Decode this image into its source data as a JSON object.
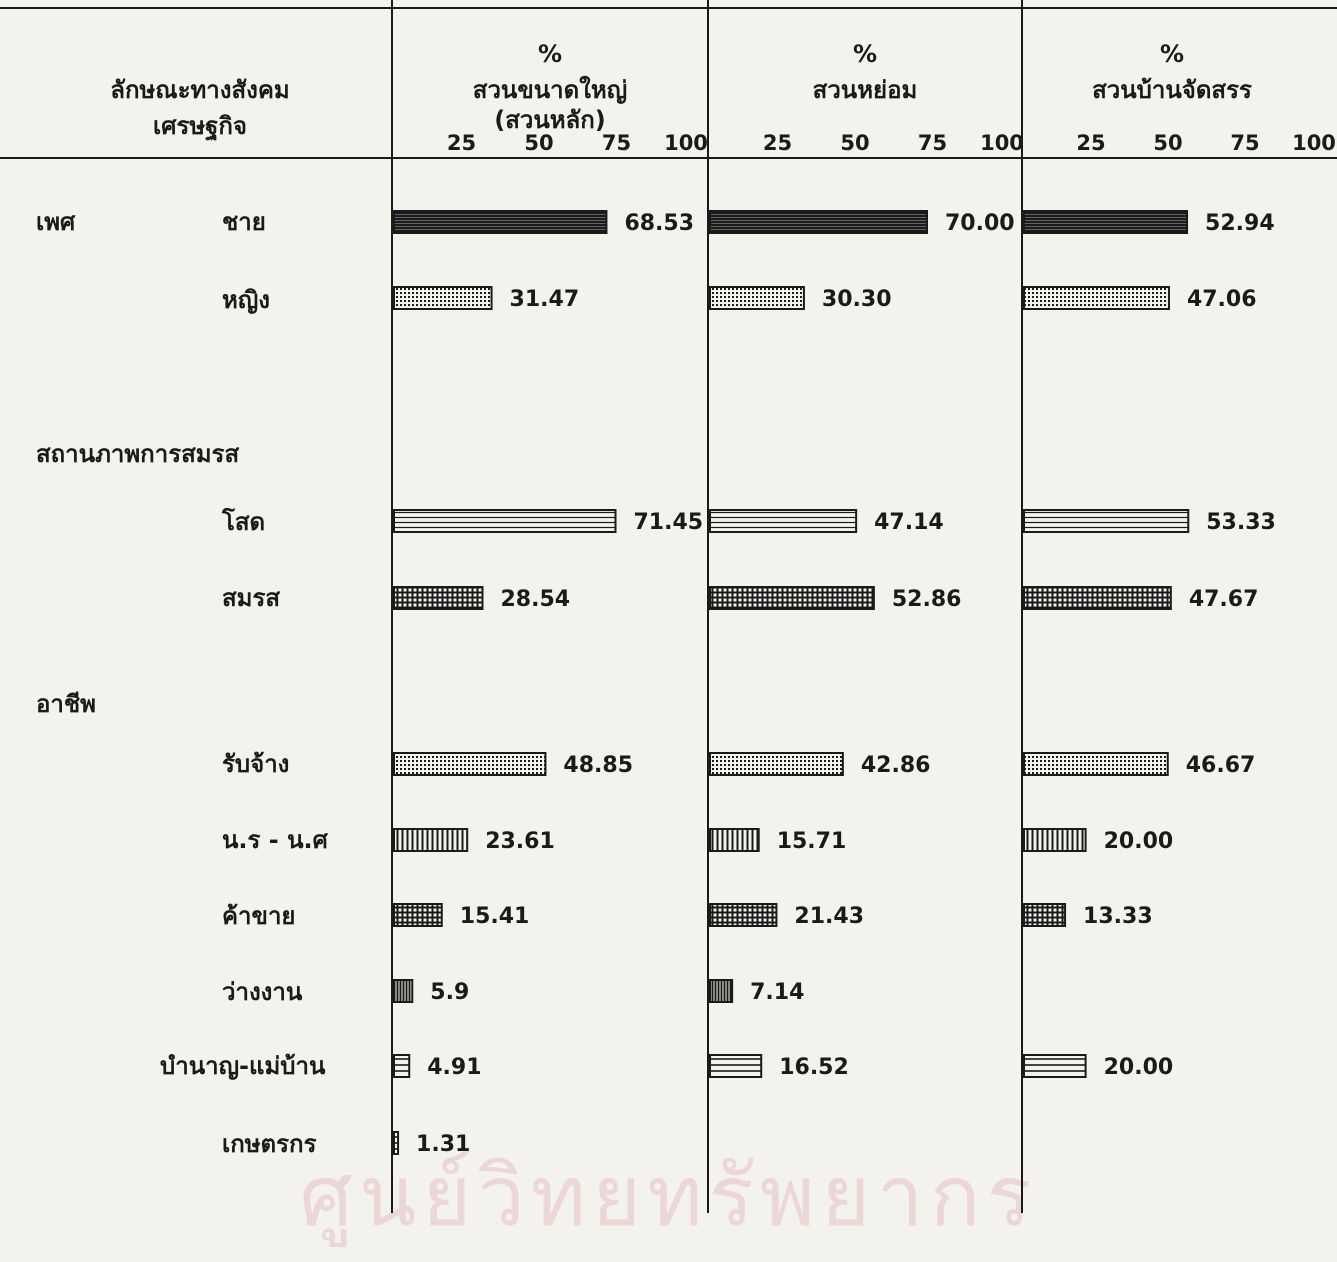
{
  "chart_data": {
    "type": "bar",
    "row_header": [
      "ลักษณะทางสังคม",
      "เศรษฐกิจ"
    ],
    "panels": [
      {
        "percent_sign": "%",
        "title": "สวนขนาดใหญ่",
        "subtitle": "(สวนหลัก)"
      },
      {
        "percent_sign": "%",
        "title": "สวนหย่อม",
        "subtitle": ""
      },
      {
        "percent_sign": "%",
        "title": "สวนบ้านจัดสรร",
        "subtitle": ""
      }
    ],
    "xlim": [
      0,
      100
    ],
    "ticks": [
      "25",
      "50",
      "75",
      "100"
    ],
    "groups": [
      {
        "label": "เพศ",
        "rows": [
          0,
          1
        ]
      },
      {
        "label": "สถานภาพการสมรส",
        "rows": [
          2,
          3
        ]
      },
      {
        "label": "อาชีพ",
        "rows": [
          4,
          5,
          6,
          7,
          8,
          9
        ]
      }
    ],
    "rows": [
      {
        "label": "ชาย",
        "pattern": "solid-dark",
        "values": [
          68.53,
          70.0,
          52.94
        ],
        "labels": [
          "68.53",
          "70.00",
          "52.94"
        ]
      },
      {
        "label": "หญิง",
        "pattern": "dots",
        "values": [
          31.47,
          30.3,
          47.06
        ],
        "labels": [
          "31.47",
          "30.30",
          "47.06"
        ]
      },
      {
        "label": "โสด",
        "pattern": "light-hlines",
        "values": [
          71.45,
          47.14,
          53.33
        ],
        "labels": [
          "71.45",
          "47.14",
          "53.33"
        ]
      },
      {
        "label": "สมรส",
        "pattern": "grid",
        "values": [
          28.54,
          52.86,
          47.67
        ],
        "labels": [
          "28.54",
          "52.86",
          "47.67"
        ]
      },
      {
        "label": "รับจ้าง",
        "pattern": "dots",
        "values": [
          48.85,
          42.86,
          46.67
        ],
        "labels": [
          "48.85",
          "42.86",
          "46.67"
        ]
      },
      {
        "label": "น.ร - น.ศ",
        "pattern": "vlines",
        "values": [
          23.61,
          15.71,
          20.0
        ],
        "labels": [
          "23.61",
          "15.71",
          "20.00"
        ]
      },
      {
        "label": "ค้าขาย",
        "pattern": "grid",
        "values": [
          15.41,
          21.43,
          13.33
        ],
        "labels": [
          "15.41",
          "21.43",
          "13.33"
        ]
      },
      {
        "label": "ว่างงาน",
        "pattern": "dense-vlines",
        "values": [
          5.9,
          7.14,
          null
        ],
        "labels": [
          "5.9",
          "7.14",
          ""
        ]
      },
      {
        "label": "บำนาญ-แม่บ้าน",
        "pattern": "hlines",
        "values": [
          4.91,
          16.52,
          20.0
        ],
        "labels": [
          "4.91",
          "16.52",
          "20.00"
        ]
      },
      {
        "label": "เกษตรกร",
        "pattern": "hlines",
        "values": [
          1.31,
          null,
          null
        ],
        "labels": [
          "1.31",
          "",
          ""
        ]
      }
    ]
  },
  "watermark": "ศูนย์วิทยทรัพยากร",
  "colors": {
    "ink": "#1a1a1a",
    "paper": "#f4f2ec",
    "watermark": "#d27a8c"
  }
}
